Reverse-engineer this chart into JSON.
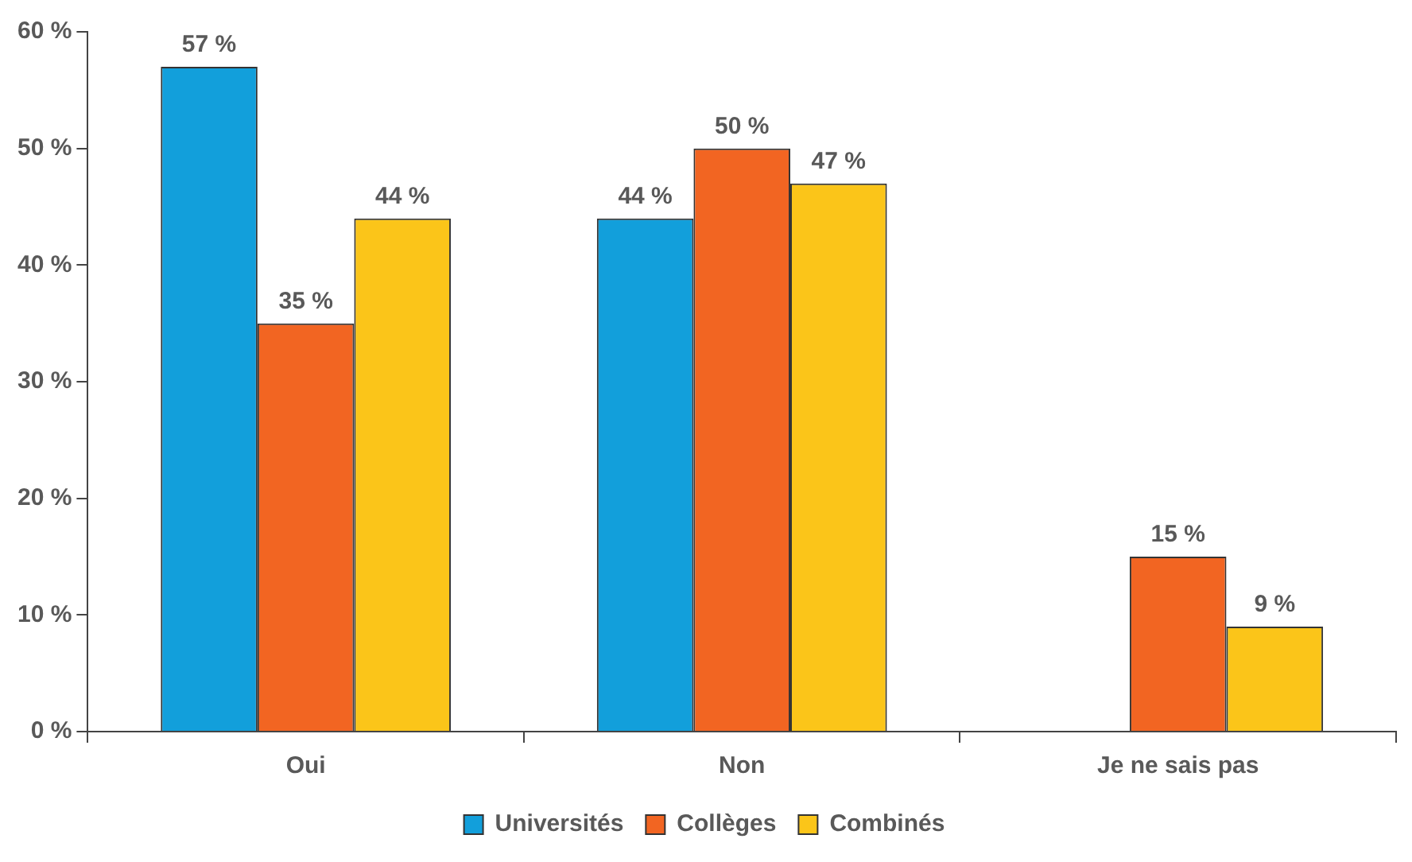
{
  "chart_data": {
    "type": "bar",
    "categories": [
      "Oui",
      "Non",
      "Je ne sais pas"
    ],
    "series": [
      {
        "name": "Universités",
        "color": "#129fdb",
        "values": [
          57,
          44,
          null
        ],
        "value_labels": [
          "57 %",
          "44 %",
          null
        ]
      },
      {
        "name": "Collèges",
        "color": "#f26522",
        "values": [
          35,
          50,
          15
        ],
        "value_labels": [
          "35 %",
          "50 %",
          "15 %"
        ]
      },
      {
        "name": "Combinés",
        "color": "#fbc519",
        "values": [
          44,
          47,
          9
        ],
        "value_labels": [
          "44 %",
          "47 %",
          "9 %"
        ]
      }
    ],
    "ylim": [
      0,
      60
    ],
    "yticks": [
      {
        "value": 0,
        "label": "0 %"
      },
      {
        "value": 10,
        "label": "10 %"
      },
      {
        "value": 20,
        "label": "20 %"
      },
      {
        "value": 30,
        "label": "30 %"
      },
      {
        "value": 40,
        "label": "40 %"
      },
      {
        "value": 50,
        "label": "50 %"
      },
      {
        "value": 60,
        "label": "60 %"
      }
    ],
    "grid": false,
    "legend": "bottom"
  }
}
